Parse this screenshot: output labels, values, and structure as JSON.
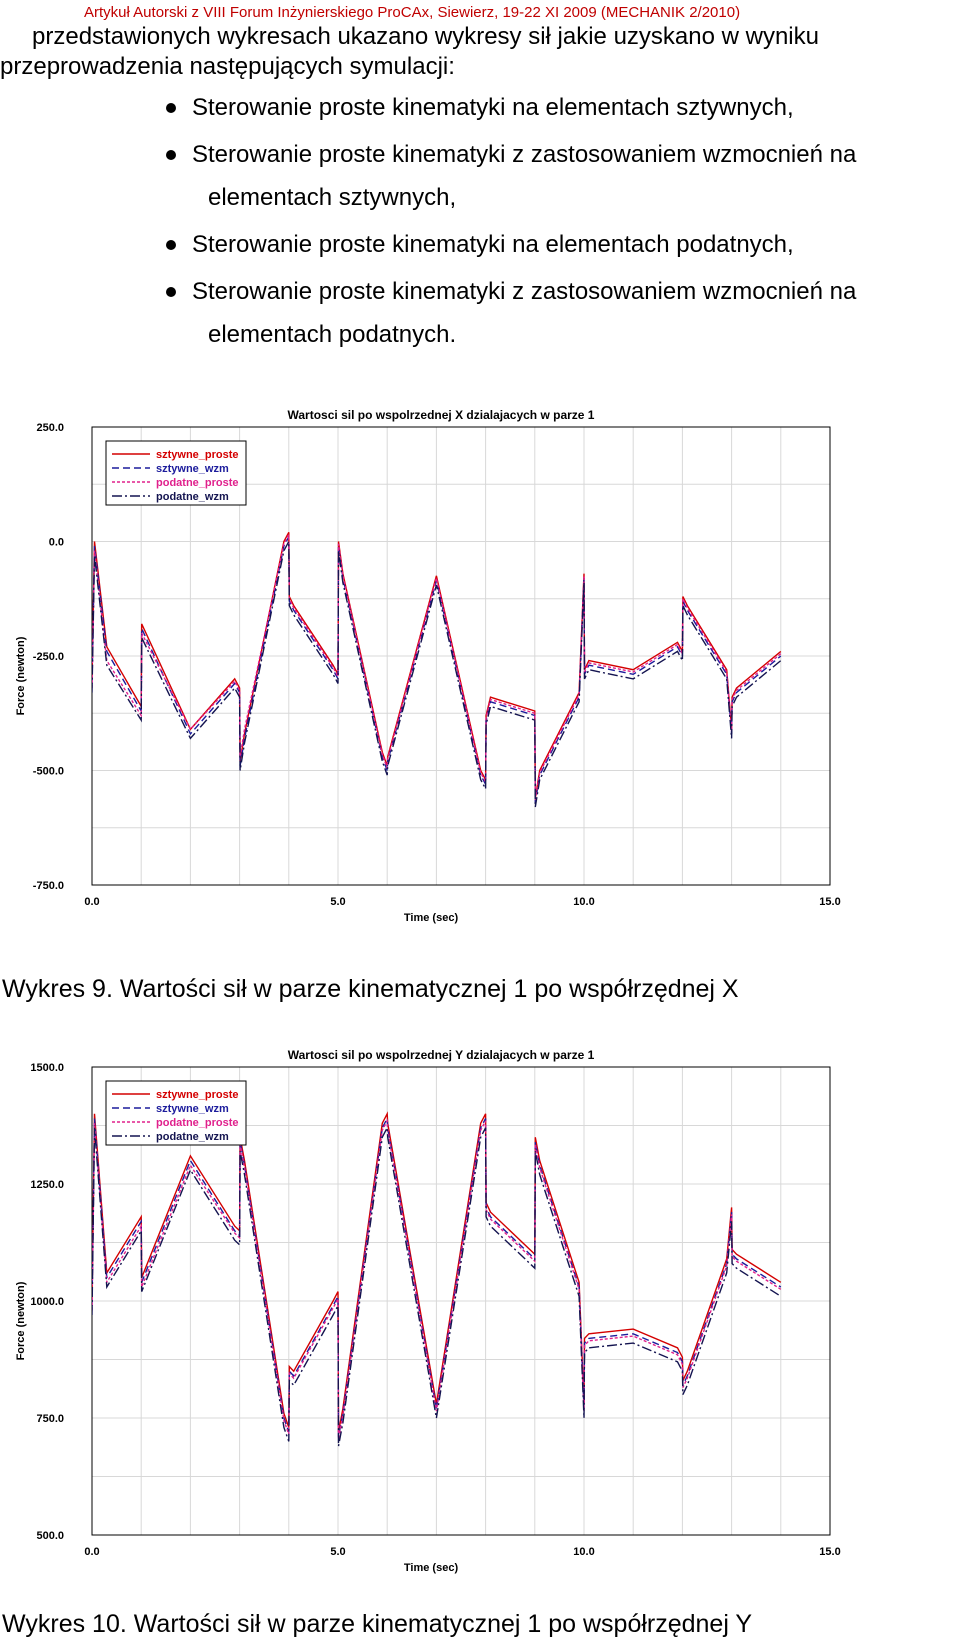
{
  "header": "Artykuł Autorski z VIII Forum Inżynierskiego ProCAx, Siewierz, 19-22 XI 2009 (MECHANIK 2/2010)",
  "intro": {
    "line1": "przedstawionych wykresach ukazano wykresy sił jakie uzyskano w wyniku",
    "line2": "przeprowadzenia następujących symulacji:"
  },
  "bullets": [
    {
      "text": "Sterowanie proste kinematyki na elementach sztywnych,",
      "cont": ""
    },
    {
      "text": "Sterowanie proste kinematyki z zastosowaniem wzmocnień na",
      "cont": "elementach sztywnych,"
    },
    {
      "text": "Sterowanie proste kinematyki na elementach podatnych,",
      "cont": ""
    },
    {
      "text": "Sterowanie proste kinematyki z zastosowaniem wzmocnień na",
      "cont": "elementach podatnych."
    }
  ],
  "colors": {
    "sztywne_proste": "#d40000",
    "sztywne_wzm": "#1c1c9c",
    "podatne_proste": "#e0208c",
    "podatne_wzm": "#141450"
  },
  "captions": {
    "fig9": "Wykres 9. Wartości sił w parze kinematycznej 1 po współrzędnej X",
    "fig10": "Wykres 10. Wartości sił w parze kinematycznej 1 po współrzędnej Y"
  },
  "chart_data": [
    {
      "type": "line",
      "title": "Wartosci sil po wspolrzednej X dzialajacych w parze 1",
      "xlabel": "Time (sec)",
      "ylabel": "Force (newton)",
      "xlim": [
        0,
        15
      ],
      "ylim": [
        -750,
        250
      ],
      "xticks": [
        "0.0",
        "5.0",
        "10.0",
        "15.0"
      ],
      "yticks": [
        "250.0",
        "0.0",
        "-250.0",
        "-500.0",
        "-750.0"
      ],
      "grid": true,
      "legend": "top-left",
      "series": [
        {
          "name": "sztywne_proste",
          "x": [
            0,
            0.05,
            0.3,
            1.0,
            1.01,
            2.0,
            2.9,
            3.0,
            3.01,
            3.1,
            3.9,
            4.0,
            4.01,
            4.1,
            4.9,
            5.0,
            5.01,
            5.1,
            5.9,
            6.0,
            6.01,
            7.0,
            7.9,
            8.0,
            8.01,
            8.1,
            9.0,
            9.01,
            9.1,
            9.9,
            10.0,
            10.01,
            10.1,
            11.0,
            11.9,
            12.0,
            12.01,
            12.1,
            12.9,
            13.0,
            13.01,
            13.1,
            14.0
          ],
          "values": [
            -300,
            0,
            -230,
            -360,
            -180,
            -410,
            -300,
            -320,
            -480,
            -420,
            0,
            20,
            -120,
            -140,
            -270,
            -290,
            0,
            -70,
            -460,
            -490,
            -470,
            -75,
            -500,
            -520,
            -380,
            -340,
            -370,
            -560,
            -500,
            -330,
            -70,
            -280,
            -260,
            -280,
            -220,
            -240,
            -120,
            -140,
            -280,
            -410,
            -340,
            -320,
            -240
          ]
        },
        {
          "name": "sztywne_wzm",
          "x": [
            0,
            0.05,
            0.3,
            1.0,
            1.01,
            2.0,
            2.9,
            3.0,
            3.01,
            3.1,
            3.9,
            4.0,
            4.01,
            4.1,
            4.9,
            5.0,
            5.01,
            5.1,
            5.9,
            6.0,
            6.01,
            7.0,
            7.9,
            8.0,
            8.01,
            8.1,
            9.0,
            9.01,
            9.1,
            9.9,
            10.0,
            10.01,
            10.1,
            11.0,
            11.9,
            12.0,
            12.01,
            12.1,
            12.9,
            13.0,
            13.01,
            13.1,
            14.0
          ],
          "values": [
            -310,
            -10,
            -240,
            -370,
            -190,
            -420,
            -310,
            -330,
            -490,
            -430,
            -10,
            10,
            -130,
            -150,
            -280,
            -300,
            -10,
            -80,
            -470,
            -500,
            -480,
            -85,
            -510,
            -530,
            -390,
            -350,
            -380,
            -570,
            -510,
            -340,
            -80,
            -290,
            -270,
            -290,
            -230,
            -250,
            -130,
            -150,
            -290,
            -420,
            -350,
            -330,
            -250
          ]
        },
        {
          "name": "podatne_proste",
          "x": [
            0,
            0.05,
            0.3,
            1.0,
            1.01,
            2.0,
            2.9,
            3.0,
            3.01,
            3.1,
            3.9,
            4.0,
            4.01,
            4.1,
            4.9,
            5.0,
            5.01,
            5.1,
            5.9,
            6.0,
            6.01,
            7.0,
            7.9,
            8.0,
            8.01,
            8.1,
            9.0,
            9.01,
            9.1,
            9.9,
            10.0,
            10.01,
            10.1,
            11.0,
            11.9,
            12.0,
            12.01,
            12.1,
            12.9,
            13.0,
            13.01,
            13.1,
            14.0
          ],
          "values": [
            -320,
            -20,
            -260,
            -380,
            -200,
            -410,
            -305,
            -325,
            -470,
            -410,
            -5,
            15,
            -125,
            -145,
            -275,
            -295,
            -5,
            -75,
            -465,
            -495,
            -475,
            -80,
            -505,
            -525,
            -385,
            -345,
            -375,
            -565,
            -505,
            -335,
            -75,
            -285,
            -265,
            -285,
            -225,
            -245,
            -125,
            -145,
            -285,
            -415,
            -345,
            -325,
            -245
          ]
        },
        {
          "name": "podatne_wzm",
          "x": [
            0,
            0.05,
            0.3,
            1.0,
            1.01,
            2.0,
            2.9,
            3.0,
            3.01,
            3.1,
            3.9,
            4.0,
            4.01,
            4.1,
            4.9,
            5.0,
            5.01,
            5.1,
            5.9,
            6.0,
            6.01,
            7.0,
            7.9,
            8.0,
            8.01,
            8.1,
            9.0,
            9.01,
            9.1,
            9.9,
            10.0,
            10.01,
            10.1,
            11.0,
            11.9,
            12.0,
            12.01,
            12.1,
            12.9,
            13.0,
            13.01,
            13.1,
            14.0
          ],
          "values": [
            -330,
            -30,
            -270,
            -390,
            -210,
            -430,
            -320,
            -340,
            -500,
            -440,
            -20,
            0,
            -140,
            -160,
            -290,
            -310,
            -20,
            -90,
            -480,
            -510,
            -490,
            -95,
            -520,
            -540,
            -400,
            -360,
            -390,
            -580,
            -520,
            -350,
            -90,
            -300,
            -280,
            -300,
            -240,
            -260,
            -140,
            -160,
            -300,
            -430,
            -360,
            -340,
            -260
          ]
        }
      ]
    },
    {
      "type": "line",
      "title": "Wartosci sil po wspolrzednej Y dzialajacych w parze 1",
      "xlabel": "Time (sec)",
      "ylabel": "Force (newton)",
      "xlim": [
        0,
        15
      ],
      "ylim": [
        500,
        1500
      ],
      "xticks": [
        "0.0",
        "5.0",
        "10.0",
        "15.0"
      ],
      "yticks": [
        "1500.0",
        "1250.0",
        "1000.0",
        "750.0",
        "500.0"
      ],
      "grid": true,
      "legend": "top-left",
      "series": [
        {
          "name": "sztywne_proste",
          "x": [
            0,
            0.05,
            0.3,
            1.0,
            1.01,
            2.0,
            2.9,
            3.0,
            3.01,
            3.1,
            3.9,
            4.0,
            4.01,
            4.1,
            4.9,
            5.0,
            5.01,
            5.1,
            5.9,
            6.0,
            6.01,
            7.0,
            7.9,
            8.0,
            8.01,
            8.1,
            9.0,
            9.01,
            9.1,
            9.9,
            10.0,
            10.01,
            10.1,
            11.0,
            11.9,
            12.0,
            12.01,
            12.1,
            12.9,
            13.0,
            13.01,
            13.1,
            14.0
          ],
          "values": [
            1000,
            1400,
            1060,
            1180,
            1050,
            1310,
            1160,
            1150,
            1350,
            1300,
            760,
            730,
            860,
            850,
            1000,
            1020,
            720,
            770,
            1380,
            1400,
            1380,
            780,
            1380,
            1400,
            1210,
            1190,
            1100,
            1350,
            1300,
            1040,
            780,
            920,
            930,
            940,
            900,
            880,
            830,
            850,
            1090,
            1200,
            1110,
            1100,
            1040
          ]
        },
        {
          "name": "sztywne_wzm",
          "x": [
            0,
            0.05,
            0.3,
            1.0,
            1.01,
            2.0,
            2.9,
            3.0,
            3.01,
            3.1,
            3.9,
            4.0,
            4.01,
            4.1,
            4.9,
            5.0,
            5.01,
            5.1,
            5.9,
            6.0,
            6.01,
            7.0,
            7.9,
            8.0,
            8.01,
            8.1,
            9.0,
            9.01,
            9.1,
            9.9,
            10.0,
            10.01,
            10.1,
            11.0,
            11.9,
            12.0,
            12.01,
            12.1,
            12.9,
            13.0,
            13.01,
            13.1,
            14.0
          ],
          "values": [
            990,
            1390,
            1050,
            1170,
            1040,
            1300,
            1150,
            1140,
            1340,
            1290,
            750,
            720,
            850,
            840,
            990,
            1010,
            710,
            760,
            1370,
            1390,
            1370,
            770,
            1370,
            1390,
            1200,
            1180,
            1090,
            1340,
            1290,
            1030,
            770,
            910,
            920,
            930,
            890,
            870,
            820,
            840,
            1080,
            1190,
            1100,
            1090,
            1030
          ]
        },
        {
          "name": "podatne_proste",
          "x": [
            0,
            0.05,
            0.3,
            1.0,
            1.01,
            2.0,
            2.9,
            3.0,
            3.01,
            3.1,
            3.9,
            4.0,
            4.01,
            4.1,
            4.9,
            5.0,
            5.01,
            5.1,
            5.9,
            6.0,
            6.01,
            7.0,
            7.9,
            8.0,
            8.01,
            8.1,
            9.0,
            9.01,
            9.1,
            9.9,
            10.0,
            10.01,
            10.1,
            11.0,
            11.9,
            12.0,
            12.01,
            12.1,
            12.9,
            13.0,
            13.01,
            13.1,
            14.0
          ],
          "values": [
            980,
            1380,
            1040,
            1160,
            1030,
            1290,
            1145,
            1135,
            1335,
            1285,
            745,
            715,
            845,
            835,
            985,
            1005,
            705,
            755,
            1365,
            1385,
            1365,
            765,
            1365,
            1385,
            1195,
            1175,
            1085,
            1335,
            1285,
            1025,
            765,
            905,
            915,
            925,
            885,
            865,
            815,
            835,
            1075,
            1185,
            1095,
            1085,
            1025
          ]
        },
        {
          "name": "podatne_wzm",
          "x": [
            0,
            0.05,
            0.3,
            1.0,
            1.01,
            2.0,
            2.9,
            3.0,
            3.01,
            3.1,
            3.9,
            4.0,
            4.01,
            4.1,
            4.9,
            5.0,
            5.01,
            5.1,
            5.9,
            6.0,
            6.01,
            7.0,
            7.9,
            8.0,
            8.01,
            8.1,
            9.0,
            9.01,
            9.1,
            9.9,
            10.0,
            10.01,
            10.1,
            11.0,
            11.9,
            12.0,
            12.01,
            12.1,
            12.9,
            13.0,
            13.01,
            13.1,
            14.0
          ],
          "values": [
            970,
            1370,
            1030,
            1150,
            1020,
            1280,
            1130,
            1120,
            1320,
            1270,
            730,
            700,
            830,
            820,
            970,
            990,
            690,
            740,
            1350,
            1370,
            1350,
            750,
            1350,
            1370,
            1180,
            1160,
            1070,
            1320,
            1270,
            1010,
            750,
            890,
            900,
            910,
            870,
            850,
            800,
            820,
            1060,
            1170,
            1080,
            1070,
            1010
          ]
        }
      ]
    }
  ]
}
